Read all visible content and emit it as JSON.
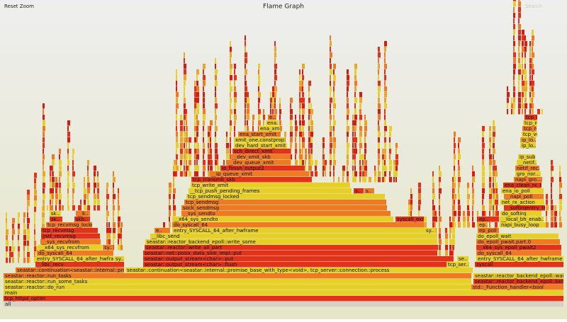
{
  "header": {
    "reset": "Reset Zoom",
    "title": "Flame Graph",
    "search": "Search"
  },
  "frames": [
    "all",
    "tcp_httpd_optim",
    "main",
    "seastar::reactor::do_run",
    "std::_Function_handler<bool",
    "seastar::reactor::run_some_tasks",
    "seastar::reactor_backend_epoll::kerne..",
    "seastar::reactor::run_tasks",
    "seastar::reactor_backend_epoll::wait...",
    "seastar::continuation<seastar::internal::promi...",
    "seastar::continuation<seastar::internal::promise_base_with_type<void>, tcp_server::connection::process",
    "__libc_recv",
    "seastar::output_stream<char>::flush",
    "tcp_ser..",
    "syscall",
    "entry_SYSCALL_64_after_hwframe",
    "sy..",
    "seastar::output_stream<char>::put",
    "se..",
    "entry_SYSCALL_64_after_hwframe",
    "do_syscall_64",
    "seastar::net::posix_data_sink_impl::put",
    "do_syscall_64",
    "__x64_sys_recvfrom",
    "sy..",
    "seastar::reactor::write_all_part",
    "__x64_sys_epoll_pwait2",
    "__sys_recvfrom",
    "seastar::reactor_backend_epoll::write_some",
    "do_epoll_pwait.part.0",
    "inet_recvmsg",
    "__libc_send",
    "do_epoll_wait",
    "tcp_recvmsg",
    "e..",
    "entry_SYSCALL_64_after_hwframe",
    "sy..",
    "ep_poll",
    "tcp_recvmsg_locked",
    "do_syscall_64",
    "ep..",
    "napi_busy_loop",
    "sk..",
    "skb..",
    "__x64_sys_sendto",
    "syscall_exit...",
    "ep..",
    "__local_bh_enab...",
    "sk..",
    "__k..",
    "__sys_sendto",
    "do_softirq",
    "sock_sendmsg",
    "__softirqentry_te...",
    "tcp_sendmsg",
    "net_rx_action",
    "tcp_sendmsg_locked",
    "__napi_poll",
    "__tcp_push_pending_frames",
    "s..",
    "s..",
    "ena_io_poll",
    "tcp_write_xmit",
    "ena_clean_rx_irq",
    "tcp_transmit_skb",
    "napi_gro...",
    "__ip_queue_xmit",
    "gro_nor...",
    "ip_finish_output2",
    "netif_rec...",
    "__dev_queue_xmit",
    "__netif...",
    "__dev_xmit_skb",
    "ip_sub...",
    "sch_direct_xmit",
    "dev_hard_start_xmit",
    "ip_lo...",
    "xmit_one.constprop...",
    "ip_lo...",
    "ena_start_xmit",
    "tcp_v4...",
    "ena_xm..",
    "tcp_rcv...",
    "ena...",
    "tcp_rcv...",
    "e..",
    "tcp_data..."
  ]
}
